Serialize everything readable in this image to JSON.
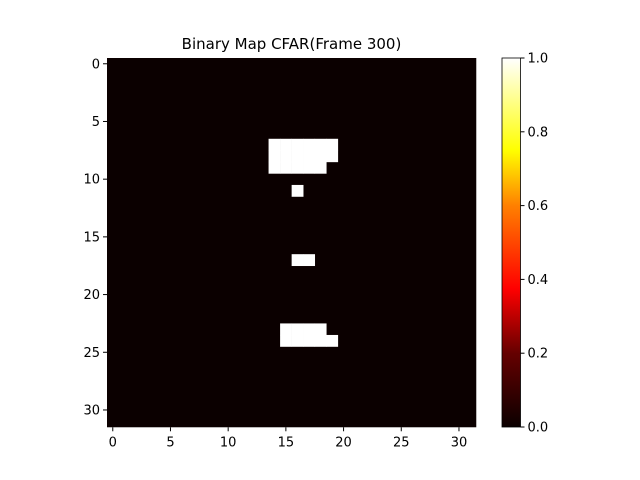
{
  "chart_data": {
    "type": "heatmap",
    "title": "Binary Map CFAR(Frame 300)",
    "xlabel": "",
    "ylabel": "",
    "rows": 32,
    "cols": 32,
    "x_ticks": [
      "0",
      "5",
      "10",
      "15",
      "20",
      "25",
      "30"
    ],
    "y_ticks": [
      "0",
      "5",
      "10",
      "15",
      "20",
      "25",
      "30"
    ],
    "colormap": "hot",
    "colorbar": {
      "min": 0.0,
      "max": 1.0,
      "ticks": [
        "0.0",
        "0.2",
        "0.4",
        "0.6",
        "0.8",
        "1.0"
      ]
    },
    "grid": false,
    "value_one_cells": [
      {
        "row": 7,
        "cols": [
          14,
          19
        ]
      },
      {
        "row": 8,
        "cols": [
          14,
          19
        ]
      },
      {
        "row": 9,
        "cols": [
          14,
          18
        ]
      },
      {
        "row": 11,
        "cols": [
          16,
          16
        ]
      },
      {
        "row": 17,
        "cols": [
          16,
          17
        ]
      },
      {
        "row": 23,
        "cols": [
          15,
          18
        ]
      },
      {
        "row": 24,
        "cols": [
          15,
          19
        ]
      }
    ]
  }
}
